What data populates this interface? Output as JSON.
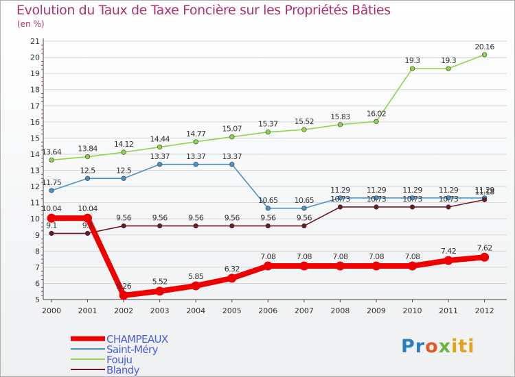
{
  "chart_data": {
    "type": "line",
    "title": "Evolution du Taux de Taxe Foncière sur les Propriétés Bâties",
    "ylabel": "(en %)",
    "xlabel": "",
    "x": [
      "2000",
      "2001",
      "2002",
      "2003",
      "2004",
      "2005",
      "2006",
      "2007",
      "2008",
      "2009",
      "2010",
      "2011",
      "2012"
    ],
    "ylim": [
      5,
      21
    ],
    "yticks": [
      "5",
      "6",
      "7",
      "8",
      "9",
      "10",
      "11",
      "12",
      "13",
      "14",
      "15",
      "16",
      "17",
      "18",
      "19",
      "20",
      "21"
    ],
    "grid": "horizontal",
    "legend_position": "bottom-left",
    "series": [
      {
        "name": "CHAMPEAUX",
        "color": "#ee0000",
        "values": [
          10.04,
          10.04,
          5.26,
          5.52,
          5.85,
          6.32,
          7.08,
          7.08,
          7.08,
          7.08,
          7.08,
          7.42,
          7.62
        ],
        "labels": [
          "10.04",
          "10.04",
          "5.26",
          "5.52",
          "5.85",
          "6.32",
          "7.08",
          "7.08",
          "7.08",
          "7.08",
          "7.08",
          "7.42",
          "7.62"
        ]
      },
      {
        "name": "Saint-Méry",
        "color": "#4a90c8",
        "values": [
          11.75,
          12.5,
          12.5,
          13.37,
          13.37,
          13.37,
          10.65,
          10.65,
          11.29,
          11.29,
          11.29,
          11.29,
          11.29
        ],
        "labels": [
          "11.75",
          "12.5",
          "12.5",
          "13.37",
          "13.37",
          "13.37",
          "10.65",
          "10.65",
          "11.29",
          "11.29",
          "11.29",
          "11.29",
          "11.29"
        ]
      },
      {
        "name": "Fouju",
        "color": "#8fd44a",
        "values": [
          13.64,
          13.84,
          14.12,
          14.44,
          14.77,
          15.07,
          15.37,
          15.52,
          15.83,
          16.02,
          19.3,
          19.3,
          20.16
        ],
        "labels": [
          "13.64",
          "13.84",
          "14.12",
          "14.44",
          "14.77",
          "15.07",
          "15.37",
          "15.52",
          "15.83",
          "16.02",
          "19.3",
          "19.3",
          "20.16"
        ]
      },
      {
        "name": "Blandy",
        "color": "#6b1a24",
        "values": [
          9.1,
          9.1,
          9.56,
          9.56,
          9.56,
          9.56,
          9.56,
          9.56,
          10.73,
          10.73,
          10.73,
          10.73,
          11.18
        ],
        "labels": [
          "9.1",
          "9.1",
          "9.56",
          "9.56",
          "9.56",
          "9.56",
          "9.56",
          "9.56",
          "10.73",
          "10.73",
          "10.73",
          "10.73",
          "11.18"
        ]
      }
    ]
  },
  "brand": {
    "part1": "Pr",
    "part2": "o",
    "part3": "x",
    "part4": "iti"
  }
}
